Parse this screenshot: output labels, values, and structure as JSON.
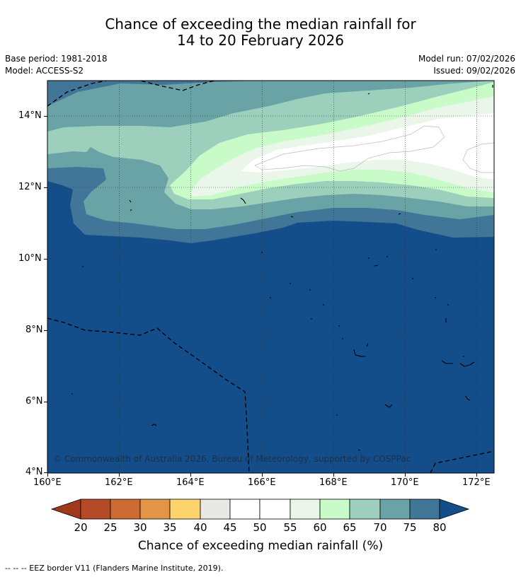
{
  "title": {
    "line1": "Chance of exceeding the median rainfall for",
    "line2": "14 to 20 February 2026"
  },
  "meta": {
    "base_period": "Base period: 1981-2018",
    "model": "Model: ACCESS-S2",
    "model_run": "Model run: 07/02/2026",
    "issued": "Issued: 09/02/2026"
  },
  "axes": {
    "x_labels": [
      "160°E",
      "162°E",
      "164°E",
      "166°E",
      "168°E",
      "170°E",
      "172°E"
    ],
    "y_labels": [
      "14°N",
      "12°N",
      "10°N",
      "8°N",
      "6°N",
      "4°N"
    ]
  },
  "copyright": "© Commonwealth of Australia 2026, Bureau of Meteorology, supported by COSPPac",
  "colorbar": {
    "ticks": [
      "20",
      "25",
      "30",
      "35",
      "40",
      "45",
      "50",
      "55",
      "60",
      "65",
      "70",
      "75",
      "80"
    ],
    "label": "Chance of exceeding median rainfall (%)",
    "colors": {
      "below20": "#a0391c",
      "b20_25": "#b54a27",
      "b25_30": "#cf6a35",
      "b30_35": "#e39447",
      "b35_40": "#fdd36b",
      "b40_45": "#e9e8e3",
      "b45_50": "#ffffff",
      "b50_55": "#ffffff",
      "b55_60": "#eaf6ea",
      "b60_65": "#c8fbc8",
      "b65_70": "#9dd0bc",
      "b70_75": "#6aa3a6",
      "b75_80": "#417699",
      "above80": "#134e8a"
    }
  },
  "footnote": "--  --  -- EEZ border V11 (Flanders Marine Institute, 2019)."
}
